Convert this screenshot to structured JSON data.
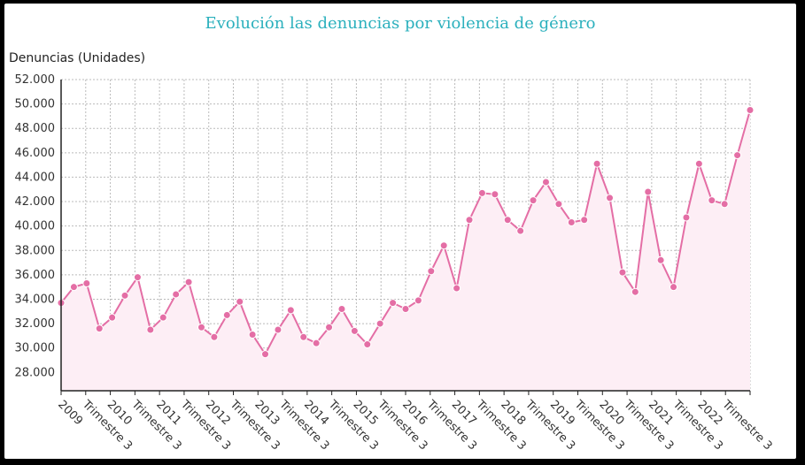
{
  "chart_data": {
    "type": "area",
    "title": "Evolución las denuncias por violencia de género",
    "ylabel": "Denuncias (Unidades)",
    "xlabel": "",
    "ylim": [
      26500,
      52000
    ],
    "yticks": [
      "28.000",
      "30.000",
      "32.000",
      "34.000",
      "36.000",
      "38.000",
      "40.000",
      "42.000",
      "44.000",
      "46.000",
      "48.000",
      "50.000",
      "52.000"
    ],
    "ytick_values": [
      28000,
      30000,
      32000,
      34000,
      36000,
      38000,
      40000,
      42000,
      44000,
      46000,
      48000,
      50000,
      52000
    ],
    "xtick_labels": [
      "2009",
      "Trimestre 3",
      "2010",
      "Trimestre 3",
      "2011",
      "Trimestre 3",
      "2012",
      "Trimestre 3",
      "2013",
      "Trimestre 3",
      "2014",
      "Trimestre 3",
      "2015",
      "Trimestre 3",
      "2016",
      "Trimestre 3",
      "2017",
      "Trimestre 3",
      "2018",
      "Trimestre 3",
      "2019",
      "Trimestre 3",
      "2020",
      "Trimestre 3",
      "2021",
      "Trimestre 3",
      "2022",
      "Trimestre 3"
    ],
    "grid": true,
    "series": [
      {
        "name": "Denuncias",
        "color": "#e46ea5",
        "fill": "#fdeef5",
        "values": [
          33700,
          35000,
          35300,
          31600,
          32500,
          34300,
          35800,
          31500,
          32500,
          34400,
          35400,
          31700,
          30900,
          32700,
          33800,
          31100,
          29500,
          31500,
          33100,
          30900,
          30400,
          31700,
          33200,
          31400,
          30300,
          32000,
          33700,
          33200,
          33900,
          36300,
          38400,
          34900,
          40500,
          42700,
          42600,
          40500,
          39600,
          42100,
          43600,
          41800,
          40300,
          40500,
          45100,
          42300,
          36200,
          34600,
          42800,
          37200,
          35000,
          40700,
          45100,
          42100,
          41800,
          45800,
          49500
        ]
      }
    ]
  }
}
